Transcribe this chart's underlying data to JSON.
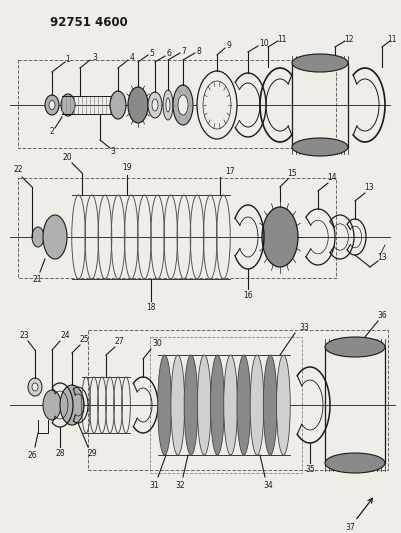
{
  "title": "92751 4600",
  "bg_color": "#f0ede8",
  "line_color": "#1a1a1a",
  "gray1": "#8a8a8a",
  "gray2": "#b0b0b0",
  "gray3": "#d0d0d0",
  "figw": 4.01,
  "figh": 5.33,
  "dpi": 100
}
